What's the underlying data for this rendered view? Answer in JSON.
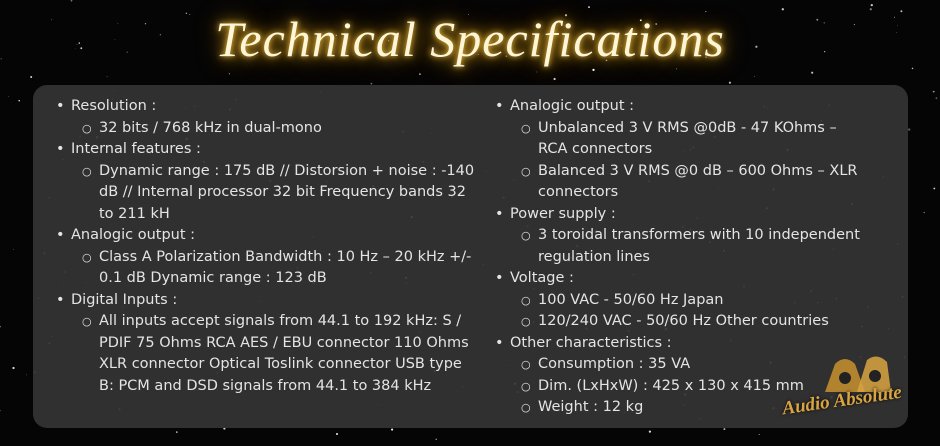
{
  "title": "Technical Specifications",
  "columns": [
    [
      {
        "label": "Resolution :",
        "items": [
          "32 bits / 768 kHz in dual-mono"
        ]
      },
      {
        "label": "Internal features :",
        "items": [
          "Dynamic range : 175 dB // Distorsion + noise : -140 dB // Internal processor 32 bit Frequency bands 32 to 211 kH"
        ]
      },
      {
        "label": "Analogic output :",
        "items": [
          "Class A Polarization Bandwidth : 10 Hz – 20 kHz +/- 0.1 dB Dynamic range : 123 dB"
        ]
      },
      {
        "label": "Digital Inputs :",
        "items": [
          "All inputs accept signals from 44.1 to 192 kHz: S / PDIF 75 Ohms RCA AES / EBU connector 110 Ohms XLR connector Optical Toslink connector USB type B: PCM and DSD signals from 44.1 to 384 kHz"
        ]
      }
    ],
    [
      {
        "label": "Analogic output :",
        "items": [
          "Unbalanced 3 V RMS @0dB - 47 KOhms – RCA connectors",
          "Balanced 3 V RMS @0 dB – 600 Ohms – XLR connectors"
        ]
      },
      {
        "label": "Power supply :",
        "items": [
          "3 toroidal transformers with 10 independent regulation lines"
        ]
      },
      {
        "label": "Voltage :",
        "items": [
          "100 VAC - 50/60 Hz Japan",
          "120/240 VAC - 50/60 Hz Other countries"
        ]
      },
      {
        "label": "Other characteristics :",
        "items": [
          "Consumption : 35 VA",
          "Dim. (LxHxW) : 425 x 130 x 415 mm",
          "Weight : 12 kg"
        ]
      }
    ]
  ],
  "logo": "Audio Absolute"
}
